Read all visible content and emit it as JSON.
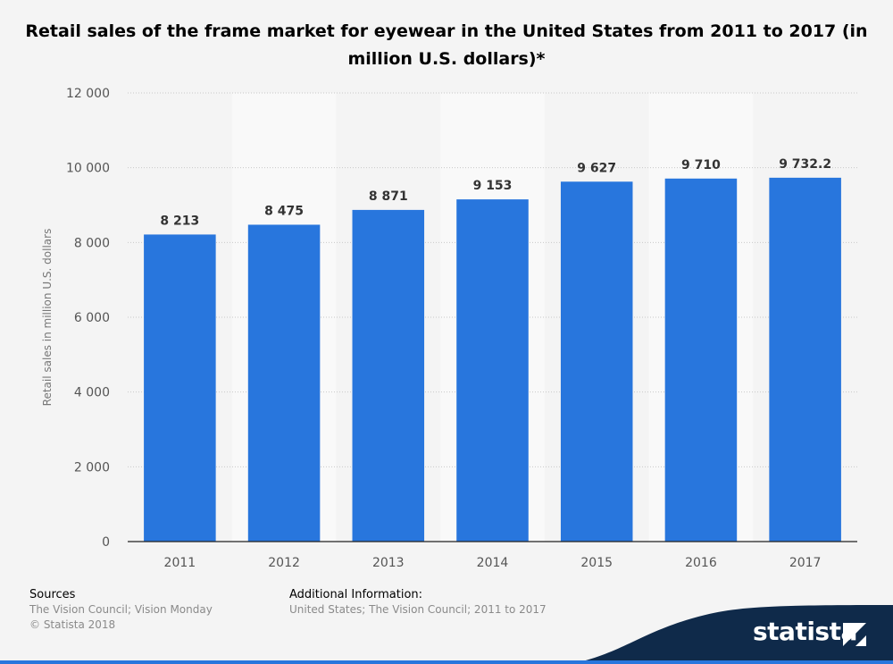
{
  "title": "Retail sales of the frame market for eyewear in the United States from 2011 to 2017 (in million U.S. dollars)*",
  "chart_data": {
    "type": "bar",
    "title": "Retail sales of the frame market for eyewear in the United States from 2011 to 2017 (in million U.S. dollars)*",
    "categories": [
      "2011",
      "2012",
      "2013",
      "2014",
      "2015",
      "2016",
      "2017"
    ],
    "values": [
      8213,
      8475,
      8871,
      9153,
      9627,
      9710,
      9732.2
    ],
    "value_labels": [
      "8 213",
      "8 475",
      "8 871",
      "9 153",
      "9 627",
      "9 710",
      "9 732.2"
    ],
    "xlabel": "",
    "ylabel": "Retail sales in million U.S. dollars",
    "ylim": [
      0,
      12000
    ],
    "yticks": [
      0,
      2000,
      4000,
      6000,
      8000,
      10000,
      12000
    ],
    "ytick_labels": [
      "0",
      "2 000",
      "4 000",
      "6 000",
      "8 000",
      "10 000",
      "12 000"
    ],
    "grid": true,
    "bar_color": "#2876dd"
  },
  "footer": {
    "sources_heading": "Sources",
    "sources_text": "The Vision Council; Vision Monday",
    "copyright": "© Statista 2018",
    "additional_heading": "Additional Information:",
    "additional_text": "United States; The Vision Council; 2011 to 2017"
  },
  "brand": {
    "name": "statista"
  }
}
